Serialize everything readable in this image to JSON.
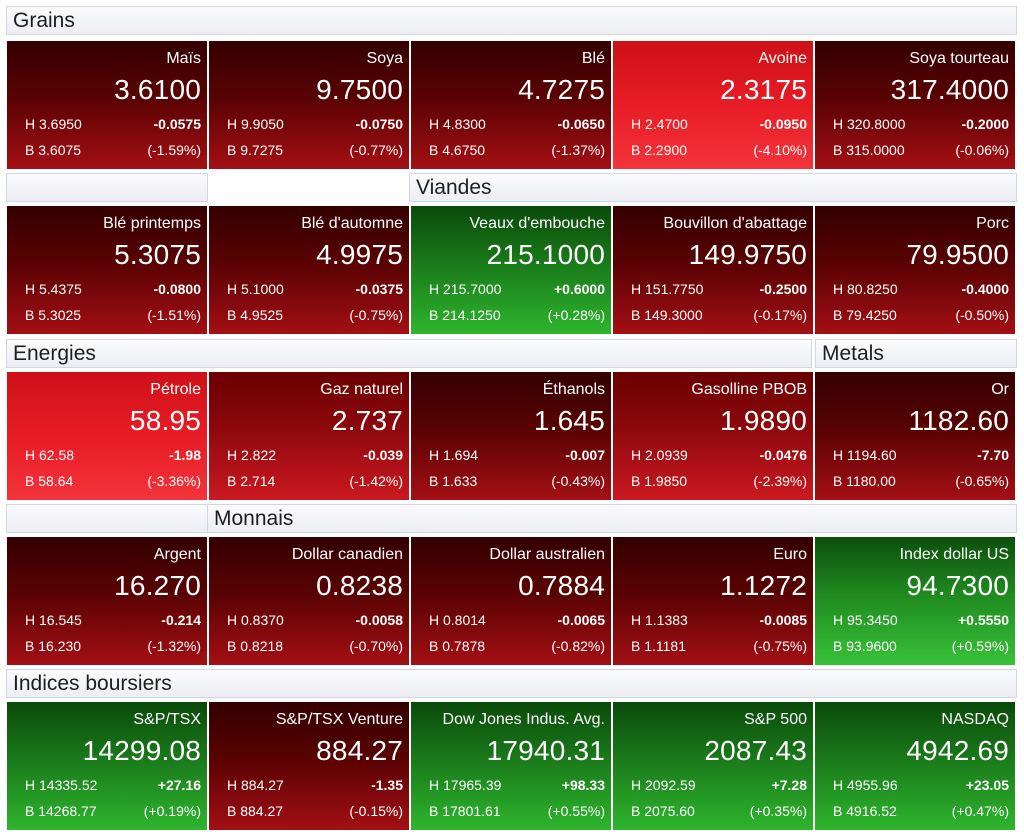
{
  "sections": {
    "grains": "Grains",
    "viandes": "Viandes",
    "energies": "Energies",
    "metals": "Metals",
    "monnais": "Monnais",
    "indices": "Indices boursiers"
  },
  "tiles": [
    {
      "name": "Maïs",
      "value": "3.6100",
      "high": "H 3.6950",
      "low": "B 3.6075",
      "change": "-0.0575",
      "pct": "(-1.59%)"
    },
    {
      "name": "Soya",
      "value": "9.7500",
      "high": "H 9.9050",
      "low": "B 9.7275",
      "change": "-0.0750",
      "pct": "(-0.77%)"
    },
    {
      "name": "Blé",
      "value": "4.7275",
      "high": "H 4.8300",
      "low": "B 4.6750",
      "change": "-0.0650",
      "pct": "(-1.37%)"
    },
    {
      "name": "Avoine",
      "value": "2.3175",
      "high": "H 2.4700",
      "low": "B 2.2900",
      "change": "-0.0950",
      "pct": "(-4.10%)"
    },
    {
      "name": "Soya tourteau",
      "value": "317.4000",
      "high": "H 320.8000",
      "low": "B 315.0000",
      "change": "-0.2000",
      "pct": "(-0.06%)"
    },
    {
      "name": "Blé printemps",
      "value": "5.3075",
      "high": "H 5.4375",
      "low": "B 5.3025",
      "change": "-0.0800",
      "pct": "(-1.51%)"
    },
    {
      "name": "Blé d'automne",
      "value": "4.9975",
      "high": "H 5.1000",
      "low": "B 4.9525",
      "change": "-0.0375",
      "pct": "(-0.75%)"
    },
    {
      "name": "Veaux d'embouche",
      "value": "215.1000",
      "high": "H 215.7000",
      "low": "B 214.1250",
      "change": "+0.6000",
      "pct": "(+0.28%)"
    },
    {
      "name": "Bouvillon d'abattage",
      "value": "149.9750",
      "high": "H 151.7750",
      "low": "B 149.3000",
      "change": "-0.2500",
      "pct": "(-0.17%)"
    },
    {
      "name": "Porc",
      "value": "79.9500",
      "high": "H 80.8250",
      "low": "B 79.4250",
      "change": "-0.4000",
      "pct": "(-0.50%)"
    },
    {
      "name": "Pétrole",
      "value": "58.95",
      "high": "H 62.58",
      "low": "B 58.64",
      "change": "-1.98",
      "pct": "(-3.36%)"
    },
    {
      "name": "Gaz naturel",
      "value": "2.737",
      "high": "H 2.822",
      "low": "B 2.714",
      "change": "-0.039",
      "pct": "(-1.42%)"
    },
    {
      "name": "Éthanols",
      "value": "1.645",
      "high": "H 1.694",
      "low": "B 1.633",
      "change": "-0.007",
      "pct": "(-0.43%)"
    },
    {
      "name": "Gasolline PBOB",
      "value": "1.9890",
      "high": "H 2.0939",
      "low": "B 1.9850",
      "change": "-0.0476",
      "pct": "(-2.39%)"
    },
    {
      "name": "Or",
      "value": "1182.60",
      "high": "H 1194.60",
      "low": "B 1180.00",
      "change": "-7.70",
      "pct": "(-0.65%)"
    },
    {
      "name": "Argent",
      "value": "16.270",
      "high": "H 16.545",
      "low": "B 16.230",
      "change": "-0.214",
      "pct": "(-1.32%)"
    },
    {
      "name": "Dollar canadien",
      "value": "0.8238",
      "high": "H 0.8370",
      "low": "B 0.8218",
      "change": "-0.0058",
      "pct": "(-0.70%)"
    },
    {
      "name": "Dollar australien",
      "value": "0.7884",
      "high": "H 0.8014",
      "low": "B 0.7878",
      "change": "-0.0065",
      "pct": "(-0.82%)"
    },
    {
      "name": "Euro",
      "value": "1.1272",
      "high": "H 1.1383",
      "low": "B 1.1181",
      "change": "-0.0085",
      "pct": "(-0.75%)"
    },
    {
      "name": "Index dollar US",
      "value": "94.7300",
      "high": "H 95.3450",
      "low": "B 93.9600",
      "change": "+0.5550",
      "pct": "(+0.59%)"
    },
    {
      "name": "S&P/TSX",
      "value": "14299.08",
      "high": "H 14335.52",
      "low": "B 14268.77",
      "change": "+27.16",
      "pct": "(+0.19%)"
    },
    {
      "name": "S&P/TSX Venture",
      "value": "884.27",
      "high": "H 884.27",
      "low": "B 884.27",
      "change": "-1.35",
      "pct": "(-0.15%)"
    },
    {
      "name": "Dow Jones Indus. Avg.",
      "value": "17940.31",
      "high": "H 17965.39",
      "low": "B 17801.61",
      "change": "+98.33",
      "pct": "(+0.55%)"
    },
    {
      "name": "S&P 500",
      "value": "2087.43",
      "high": "H 2092.59",
      "low": "B 2075.60",
      "change": "+7.28",
      "pct": "(+0.35%)"
    },
    {
      "name": "NASDAQ",
      "value": "4942.69",
      "high": "H 4955.96",
      "low": "B 4916.52",
      "change": "+23.05",
      "pct": "(+0.47%)"
    }
  ]
}
